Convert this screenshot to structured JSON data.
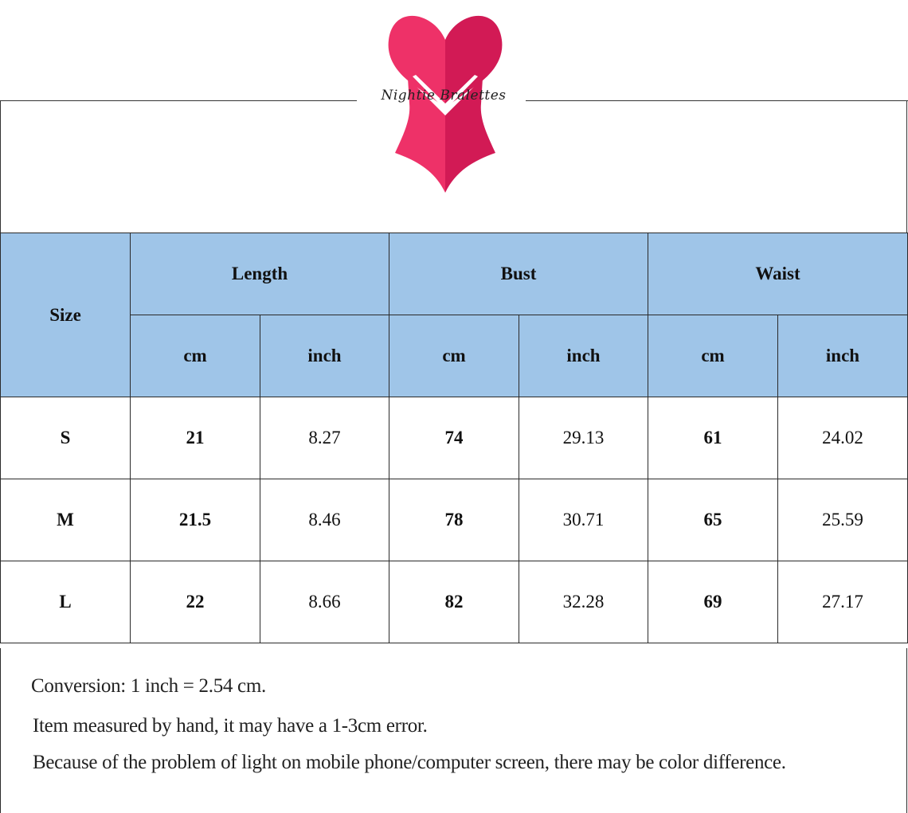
{
  "brand": {
    "name": "Nightie Bralettes",
    "logo_icon": "corset-heart-icon",
    "colors": {
      "logo_left": "#ee3168",
      "logo_right": "#d21a55",
      "header_fill": "#9fc5e8"
    }
  },
  "table": {
    "size_header": "Size",
    "groups": [
      {
        "label": "Length"
      },
      {
        "label": "Bust"
      },
      {
        "label": "Waist"
      }
    ],
    "units": [
      "cm",
      "inch",
      "cm",
      "inch",
      "cm",
      "inch"
    ],
    "rows": [
      {
        "size": "S",
        "cells": [
          "21",
          "8.27",
          "74",
          "29.13",
          "61",
          "24.02"
        ]
      },
      {
        "size": "M",
        "cells": [
          "21.5",
          "8.46",
          "78",
          "30.71",
          "65",
          "25.59"
        ]
      },
      {
        "size": "L",
        "cells": [
          "22",
          "8.66",
          "82",
          "32.28",
          "69",
          "27.17"
        ]
      }
    ]
  },
  "notes": {
    "conversion": "Conversion: 1 inch = 2.54 cm.",
    "measure": "Item measured by hand, it may have a 1-3cm error.",
    "color": "Because of the problem of light on mobile phone/computer screen, there may be color difference."
  }
}
